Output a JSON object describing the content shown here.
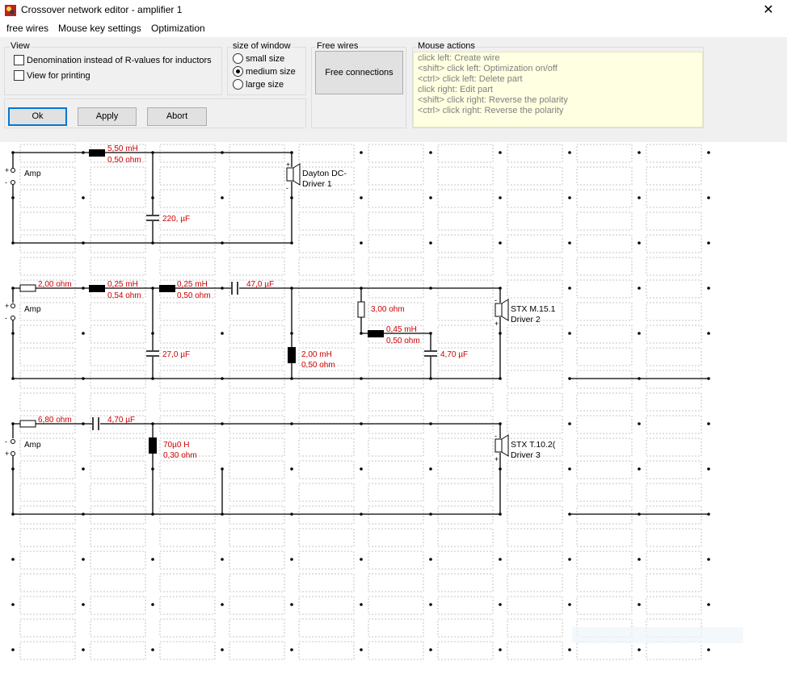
{
  "window": {
    "title": "Crossover network editor - amplifier 1",
    "close_glyph": "✕"
  },
  "menu": [
    "free wires",
    "Mouse key settings",
    "Optimization"
  ],
  "view_group": {
    "title": "View",
    "options": [
      {
        "label": "Denomination instead of R-values for inductors",
        "checked": false
      },
      {
        "label": "View for printing",
        "checked": false
      }
    ]
  },
  "size_group": {
    "title": "size of window",
    "options": [
      {
        "label": "small size",
        "selected": false
      },
      {
        "label": "medium size",
        "selected": true
      },
      {
        "label": "large size",
        "selected": false
      }
    ]
  },
  "buttons": {
    "ok": "Ok",
    "apply": "Apply",
    "abort": "Abort"
  },
  "free_wires": {
    "title": "Free wires",
    "button": "Free connections"
  },
  "mouse_actions": {
    "title": "Mouse actions",
    "lines": [
      "click left: Create wire",
      "<shift> click left: Optimization on/off",
      "<ctrl> click left: Delete part",
      "click right: Edit part",
      "<shift> click right: Reverse the polarity",
      "<ctrl> click right: Reverse the polarity"
    ]
  },
  "colors": {
    "part_value": "#cc0000",
    "wire": "#000000",
    "placeholder": "#b4b4b4",
    "mouse_box": "#ffffe1"
  },
  "circuit": {
    "amp_label": "Amp",
    "branch1": {
      "l1": {
        "value": "5,50 mH",
        "resistance": "0,50 ohm"
      },
      "c1": "220, µF",
      "driver": {
        "name": "Dayton DC-",
        "label": "Driver 1"
      }
    },
    "branch2": {
      "r1": "2,00 ohm",
      "l1": {
        "value": "0,25 mH",
        "resistance": "0,54 ohm"
      },
      "l2": {
        "value": "0,25 mH",
        "resistance": "0,50 ohm"
      },
      "c_series": "47,0 µF",
      "c_shunt": "27,0 µF",
      "l_shunt": {
        "value": "2,00 mH",
        "resistance": "0,50 ohm"
      },
      "r2": "3,00 ohm",
      "l3": {
        "value": "0,45 mH",
        "resistance": "0,50 ohm"
      },
      "c_notch": "4,70 µF",
      "driver": {
        "name": "STX M.15.1",
        "label": "Driver 2"
      }
    },
    "branch3": {
      "r1": "6,80 ohm",
      "c_series": "4,70 µF",
      "l_shunt": {
        "value": "70µ0 H",
        "resistance": "0,30 ohm"
      },
      "driver": {
        "name": "STX T.10.2(",
        "label": "Driver 3"
      }
    }
  }
}
